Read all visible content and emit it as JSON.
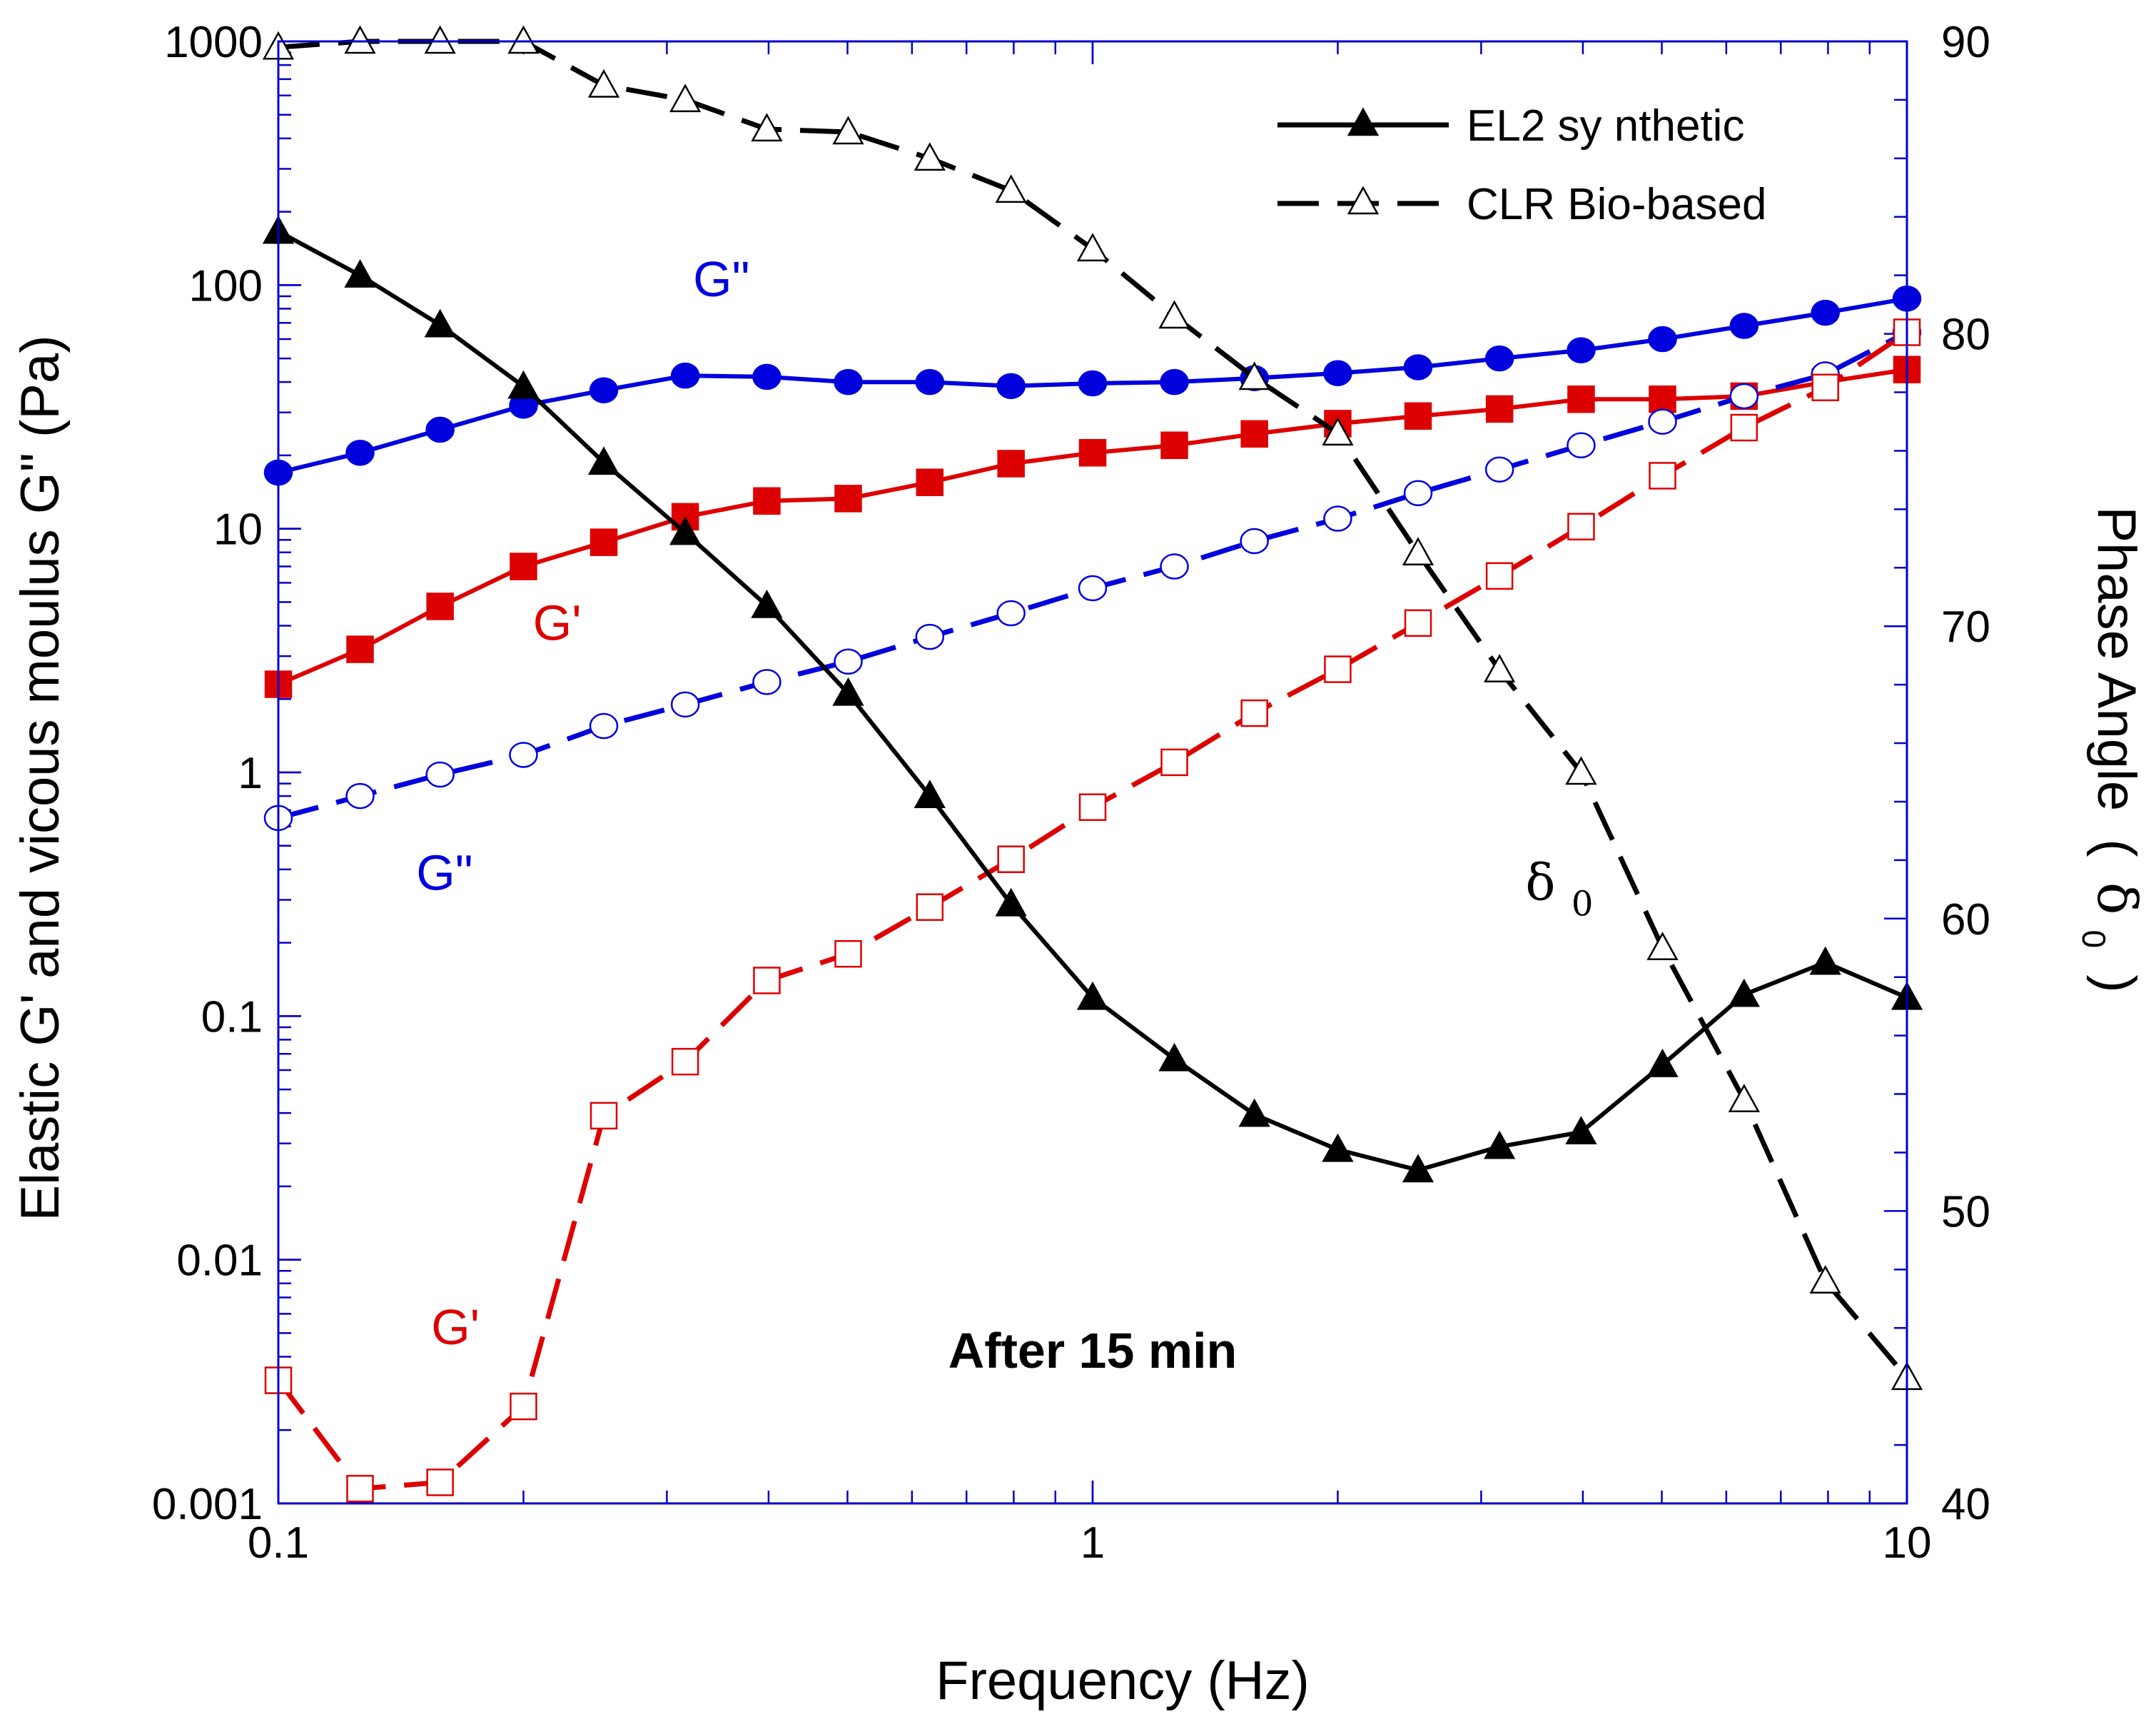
{
  "chart_data": {
    "type": "line",
    "title": "",
    "xlabel": "Frequency (Hz)",
    "ylabel_left": "Elastic G' and vicous moulus G\" (Pa)",
    "ylabel_right": "Phase Angle",
    "ylabel_right_symbol": "δ",
    "ylabel_right_subscript": "0",
    "ylabel_right_paren_open": "(",
    "ylabel_right_paren_close": ")",
    "x_scale": "log",
    "xlim": [
      0.1,
      10
    ],
    "y_left_scale": "log",
    "y_left_lim": [
      0.001,
      1000
    ],
    "y_right_lim": [
      40,
      90
    ],
    "x_ticks": [
      {
        "value": 0.1,
        "label": "0.1"
      },
      {
        "value": 1,
        "label": "1"
      },
      {
        "value": 10,
        "label": "10"
      }
    ],
    "y_left_ticks": [
      {
        "value": 0.001,
        "label": "0.001"
      },
      {
        "value": 0.01,
        "label": "0.01"
      },
      {
        "value": 0.1,
        "label": "0.1"
      },
      {
        "value": 1,
        "label": "1"
      },
      {
        "value": 10,
        "label": "10"
      },
      {
        "value": 100,
        "label": "100"
      },
      {
        "value": 1000,
        "label": "1000"
      }
    ],
    "y_right_ticks": [
      {
        "value": 40,
        "label": "40"
      },
      {
        "value": 50,
        "label": "50"
      },
      {
        "value": 60,
        "label": "60"
      },
      {
        "value": 70,
        "label": "70"
      },
      {
        "value": 80,
        "label": "80"
      },
      {
        "value": 90,
        "label": "90"
      }
    ],
    "x": [
      0.1,
      0.126,
      0.158,
      0.2,
      0.251,
      0.316,
      0.398,
      0.501,
      0.631,
      0.794,
      1.0,
      1.26,
      1.58,
      2.0,
      2.51,
      3.16,
      3.98,
      5.01,
      6.31,
      7.94,
      10.0
    ],
    "series": [
      {
        "name": "EL2 synthetic G\"",
        "axis": "left",
        "color": "#0000dd",
        "marker": "circle",
        "filled": true,
        "dashed": false,
        "values": [
          17,
          20.5,
          25.5,
          32,
          37,
          42.5,
          42,
          40,
          40,
          38.5,
          39.5,
          40,
          41.5,
          43.5,
          46,
          50,
          54,
          60,
          68,
          77,
          88
        ]
      },
      {
        "name": "EL2 synthetic G'",
        "axis": "left",
        "color": "#dd0000",
        "marker": "square",
        "filled": true,
        "dashed": false,
        "values": [
          2.3,
          3.2,
          4.8,
          7.0,
          8.8,
          11.2,
          13.0,
          13.3,
          15.5,
          18.5,
          20.5,
          22.0,
          24.5,
          27.0,
          29.0,
          31.0,
          34.0,
          34.0,
          35.0,
          40.0,
          45.0
        ]
      },
      {
        "name": "CLR Bio-based G\"",
        "axis": "left",
        "color": "#0000dd",
        "marker": "circle",
        "filled": false,
        "dashed": true,
        "values": [
          0.65,
          0.8,
          0.98,
          1.18,
          1.55,
          1.9,
          2.35,
          2.85,
          3.6,
          4.5,
          5.7,
          7.0,
          8.9,
          11.0,
          14.0,
          17.5,
          22.0,
          27.5,
          35.0,
          43.0,
          64.0
        ]
      },
      {
        "name": "CLR Bio-based G'",
        "axis": "left",
        "color": "#dd0000",
        "marker": "square",
        "filled": false,
        "dashed": true,
        "values": [
          0.0032,
          0.00115,
          0.00122,
          0.0025,
          0.039,
          0.065,
          0.14,
          0.18,
          0.28,
          0.44,
          0.72,
          1.1,
          1.75,
          2.65,
          4.1,
          6.4,
          10.2,
          16.5,
          26.0,
          38.0,
          64.0
        ]
      },
      {
        "name": "EL2 synthetic",
        "axis": "right",
        "color": "#000000",
        "marker": "triangle",
        "filled": true,
        "dashed": false,
        "values": [
          83.5,
          82.0,
          80.3,
          78.2,
          75.6,
          73.2,
          70.7,
          67.7,
          64.2,
          60.5,
          57.3,
          55.2,
          53.3,
          52.1,
          51.4,
          52.2,
          52.7,
          55.0,
          57.4,
          58.5,
          57.3
        ]
      },
      {
        "name": "CLR Bio-based",
        "axis": "right",
        "color": "#000000",
        "marker": "triangle",
        "filled": false,
        "dashed": true,
        "values": [
          89.8,
          90.0,
          90.0,
          90.0,
          88.5,
          88.0,
          87.0,
          86.9,
          86.0,
          84.9,
          82.9,
          80.6,
          78.5,
          76.6,
          72.5,
          68.5,
          65.0,
          59.0,
          53.8,
          47.6,
          44.3
        ]
      }
    ],
    "legend": {
      "position": "top-right",
      "entries": [
        {
          "label": "EL2 sy nthetic",
          "filled": true,
          "dashed": false,
          "marker": "triangle"
        },
        {
          "label": "CLR Bio-based",
          "filled": false,
          "dashed": true,
          "marker": "triangle"
        }
      ]
    },
    "annotations": [
      {
        "text": "G\"",
        "color": "#0000dd",
        "x": 0.35,
        "y": 90
      },
      {
        "text": "G'",
        "color": "#dd0000",
        "x": 0.22,
        "y": 3.5
      },
      {
        "text": "G\"",
        "color": "#0000dd",
        "x": 0.16,
        "y": 0.33
      },
      {
        "text": "G'",
        "color": "#dd0000",
        "x": 0.165,
        "y": 0.0045
      },
      {
        "text": "After 15 min",
        "color": "#000000",
        "bold": true,
        "x": 1.0,
        "y": 0.0036
      }
    ],
    "delta_label": {
      "symbol": "δ",
      "subscript": "0",
      "x": 3.4,
      "y": 0.3
    }
  }
}
